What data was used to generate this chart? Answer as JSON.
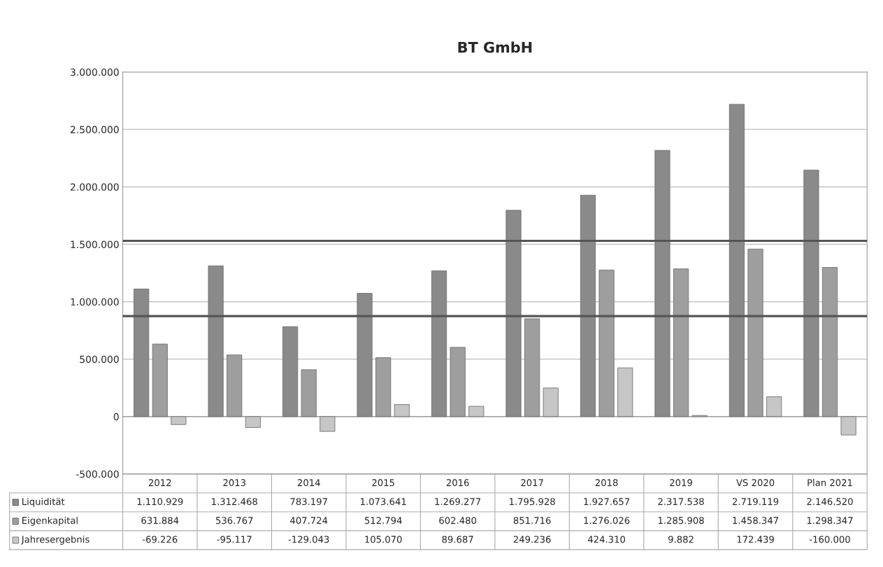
{
  "chart_data": {
    "type": "bar",
    "title": "BT GmbH",
    "categories": [
      "2012",
      "2013",
      "2014",
      "2015",
      "2016",
      "2017",
      "2018",
      "2019",
      "VS 2020",
      "Plan 2021"
    ],
    "series": [
      {
        "name": "Liquidität",
        "color": "#8a8a8a",
        "values": [
          1110929,
          1312468,
          783197,
          1073641,
          1269277,
          1795928,
          1927657,
          2317538,
          2719119,
          2146520
        ],
        "value_labels": [
          "1.110.929",
          "1.312.468",
          "783.197",
          "1.073.641",
          "1.269.277",
          "1.795.928",
          "1.927.657",
          "2.317.538",
          "2.719.119",
          "2.146.520"
        ]
      },
      {
        "name": "Eigenkapital",
        "color": "#9e9e9e",
        "values": [
          631884,
          536767,
          407724,
          512794,
          602480,
          851716,
          1276026,
          1285908,
          1458347,
          1298347
        ],
        "value_labels": [
          "631.884",
          "536.767",
          "407.724",
          "512.794",
          "602.480",
          "851.716",
          "1.276.026",
          "1.285.908",
          "1.458.347",
          "1.298.347"
        ]
      },
      {
        "name": "Jahresergebnis",
        "color": "#c6c6c6",
        "values": [
          -69226,
          -95117,
          -129043,
          105070,
          89687,
          249236,
          424310,
          9882,
          172439,
          -160000
        ],
        "value_labels": [
          "-69.226",
          "-95.117",
          "-129.043",
          "105.070",
          "89.687",
          "249.236",
          "424.310",
          "9.882",
          "172.439",
          "-160.000"
        ]
      }
    ],
    "ylim": [
      -500000,
      3000000
    ],
    "yticks": [
      {
        "value": -500000,
        "label": "-500.000"
      },
      {
        "value": 0,
        "label": "0"
      },
      {
        "value": 500000,
        "label": "500.000"
      },
      {
        "value": 1000000,
        "label": "1.000.000"
      },
      {
        "value": 1500000,
        "label": "1.500.000"
      },
      {
        "value": 2000000,
        "label": "2.000.000"
      },
      {
        "value": 2500000,
        "label": "2.500.000"
      },
      {
        "value": 3000000,
        "label": "3.000.000"
      }
    ],
    "grid": "y",
    "legend": "bottom",
    "ref_lines": [
      {
        "axis": "y",
        "value": 1530000,
        "color": "#555555"
      },
      {
        "axis": "y",
        "value": 875000,
        "color": "#555555"
      }
    ]
  }
}
